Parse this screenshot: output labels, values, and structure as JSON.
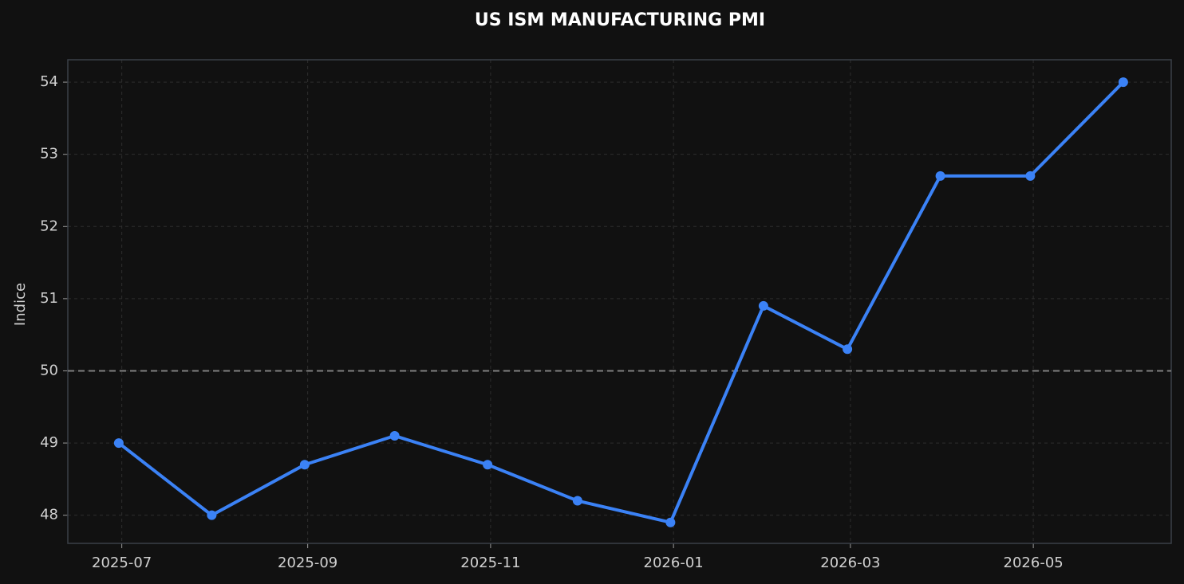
{
  "chart_data": {
    "type": "line",
    "title": "US ISM MANUFACTURING PMI",
    "ylabel": "Indice",
    "x": [
      "2025-06",
      "2025-07",
      "2025-08",
      "2025-09",
      "2025-10",
      "2025-11",
      "2025-12",
      "2026-01",
      "2026-02",
      "2026-03",
      "2026-04",
      "2026-05"
    ],
    "series": [
      {
        "name": "ISM Manufacturing PMI",
        "color": "#3b82f6",
        "values": [
          49.0,
          48.0,
          48.7,
          49.1,
          48.7,
          48.2,
          47.9,
          50.9,
          50.3,
          52.7,
          52.7,
          54.0
        ]
      }
    ],
    "xlim": [
      "2025-06-13",
      "2026-06-16"
    ],
    "xticks": [
      "2025-07",
      "2025-09",
      "2025-11",
      "2026-01",
      "2026-03",
      "2026-05"
    ],
    "ylim": [
      47.61,
      54.31
    ],
    "yticks": [
      48,
      49,
      50,
      51,
      52,
      53,
      54
    ],
    "reference_line": {
      "value": 50,
      "color": "#808080"
    },
    "grid": true
  }
}
